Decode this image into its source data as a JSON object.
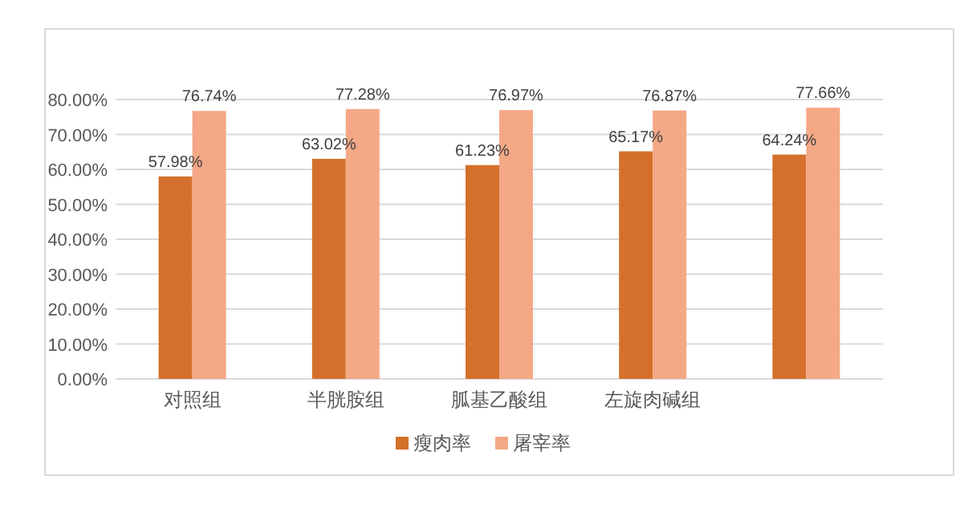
{
  "chart_data": {
    "type": "bar",
    "categories": [
      "对照组",
      "半胱胺组",
      "胍基乙酸组",
      "左旋肉碱组",
      null
    ],
    "series": [
      {
        "name": "瘦肉率",
        "color": "#d4702b",
        "values": [
          57.98,
          63.02,
          61.23,
          65.17,
          64.24
        ],
        "value_labels": [
          "57.98%",
          "63.02%",
          "61.23%",
          "65.17%",
          "64.24%"
        ]
      },
      {
        "name": "屠宰率",
        "color": "#f4a886",
        "values": [
          76.74,
          77.28,
          76.97,
          76.87,
          77.66
        ],
        "value_labels": [
          "76.74%",
          "77.28%",
          "76.97%",
          "76.87%",
          "77.66%"
        ]
      }
    ],
    "ylim": [
      0,
      80
    ],
    "yticks": [
      {
        "value": 0,
        "label": "0.00%"
      },
      {
        "value": 10,
        "label": "10.00%"
      },
      {
        "value": 20,
        "label": "20.00%"
      },
      {
        "value": 30,
        "label": "30.00%"
      },
      {
        "value": 40,
        "label": "40.00%"
      },
      {
        "value": 50,
        "label": "50.00%"
      },
      {
        "value": 60,
        "label": "60.00%"
      },
      {
        "value": 70,
        "label": "70.00%"
      },
      {
        "value": 80,
        "label": "80.00%"
      }
    ],
    "grid": "y",
    "legend": "bottom"
  }
}
